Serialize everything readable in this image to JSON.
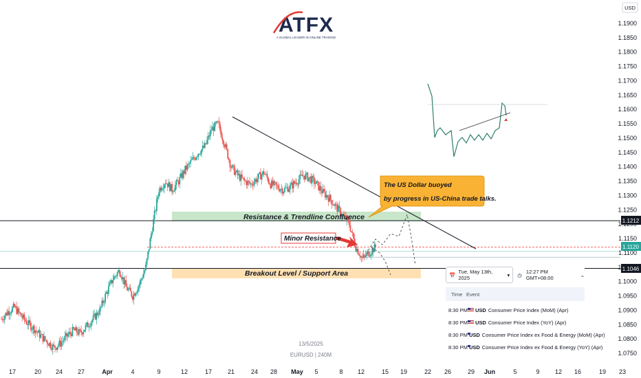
{
  "header": {
    "logo_text": "ATFX",
    "logo_tagline": "A GLOBAL LEADER IN ONLINE TRADING",
    "currency": "USD"
  },
  "watermark": {
    "date": "13/5/2025",
    "symbol": "EURUSD | 240M"
  },
  "annotations": {
    "resistance_label": "Resistance & Trendline Confluence",
    "minor_resistance": "Minor Resistance",
    "support_label": "Breakout Level / Support Area",
    "callout_line1": "The US Dollar buoyed",
    "callout_line2": "by progress in US-China trade talks."
  },
  "price_tags": {
    "resistance": "1.1212",
    "current": "1.1120",
    "support": "1.1046"
  },
  "calendar": {
    "date": "Tue, May 13th, 2025",
    "time": "12:27 PM GMT+08:00",
    "col_time": "Time",
    "col_event": "Event",
    "rows": [
      {
        "time": "8:30 PM",
        "currency": "USD",
        "event": "Consumer Price Index (MoM) (Apr)"
      },
      {
        "time": "8:30 PM",
        "currency": "USD",
        "event": "Consumer Price Index (YoY) (Apr)"
      },
      {
        "time": "8:30 PM",
        "currency": "USD",
        "event": "Consumer Price Index ex Food & Energy (MoM) (Apr)"
      },
      {
        "time": "8:30 PM",
        "currency": "USD",
        "event": "Consumer Price Index ex Food & Energy (YoY) (Apr)"
      }
    ]
  },
  "colors": {
    "up": "#26a69a",
    "down": "#ef5350",
    "resistance_zone": "#c8e6c9",
    "support_zone": "#ffe0b2",
    "callout": "#f9b233",
    "minor_arrow": "#e53935"
  },
  "chart_data": {
    "type": "candlestick",
    "title": "",
    "x_tick_labels": [
      "17",
      "20",
      "24",
      "27",
      "Apr",
      "4",
      "9",
      "12",
      "17",
      "21",
      "24",
      "28",
      "May",
      "5",
      "8",
      "12",
      "15",
      "19",
      "22",
      "26",
      "29",
      "Jun",
      "5",
      "9",
      "12",
      "16",
      "19",
      "23"
    ],
    "y_ticks": [
      "1.1900",
      "1.1850",
      "1.1800",
      "1.1750",
      "1.1700",
      "1.1650",
      "1.1600",
      "1.1550",
      "1.1500",
      "1.1450",
      "1.1400",
      "1.1350",
      "1.1300",
      "1.1250",
      "1.1200",
      "1.1150",
      "1.1100",
      "1.1050",
      "1.1000",
      "1.0950",
      "1.0900",
      "1.0850",
      "1.0800",
      "1.0750"
    ],
    "ylim": [
      1.0725,
      1.1935
    ],
    "price_path": [
      1.087,
      1.0895,
      1.091,
      1.088,
      1.0855,
      1.0835,
      1.081,
      1.079,
      1.077,
      1.0785,
      1.081,
      1.083,
      1.082,
      1.0845,
      1.087,
      1.09,
      1.096,
      1.101,
      1.104,
      1.098,
      1.095,
      1.099,
      1.105,
      1.119,
      1.132,
      1.135,
      1.132,
      1.135,
      1.139,
      1.142,
      1.145,
      1.147,
      1.153,
      1.155,
      1.148,
      1.14,
      1.137,
      1.135,
      1.134,
      1.136,
      1.138,
      1.134,
      1.133,
      1.132,
      1.133,
      1.135,
      1.137,
      1.136,
      1.134,
      1.131,
      1.129,
      1.126,
      1.123,
      1.12,
      1.112,
      1.108,
      1.11,
      1.112
    ],
    "levels": {
      "resistance": 1.1212,
      "current": 1.112,
      "support": 1.1046
    }
  }
}
